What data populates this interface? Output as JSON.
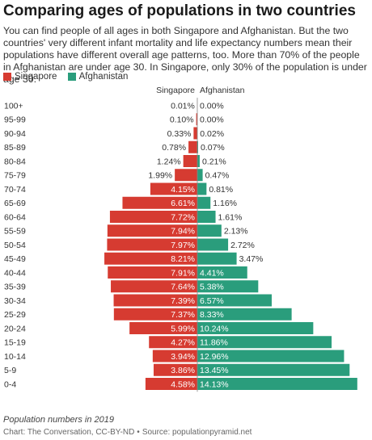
{
  "title": "Comparing ages of populations in two countries",
  "subtitle": "You can find people of all ages in both Singapore and Afghanistan. But the two countries' very different infant mortality and life expectancy numbers mean their populations have different overall age patterns, too. More than 70% of the people in Afghanistan are under age 30. In Singapore, only 30% of the population is under age 30.",
  "footnote": "Population numbers in 2019",
  "source": {
    "chart_credit": "Chart: The Conversation, CC-BY-ND",
    "separator": "•",
    "source_credit": "Source: populationpyramid.net"
  },
  "chart_data": {
    "type": "bar",
    "orientation": "horizontal",
    "layout": "population-pyramid",
    "categories": [
      "100+",
      "95-99",
      "90-94",
      "85-89",
      "80-84",
      "75-79",
      "70-74",
      "65-69",
      "60-64",
      "55-59",
      "50-54",
      "45-49",
      "40-44",
      "35-39",
      "30-34",
      "25-29",
      "20-24",
      "15-19",
      "10-14",
      "5-9",
      "0-4"
    ],
    "series": [
      {
        "name": "Singapore",
        "color": "#d63b31",
        "direction": "left",
        "values": [
          0.01,
          0.1,
          0.33,
          0.78,
          1.24,
          1.99,
          4.15,
          6.61,
          7.72,
          7.94,
          7.97,
          8.21,
          7.91,
          7.64,
          7.39,
          7.37,
          5.99,
          4.27,
          3.94,
          3.86,
          4.58
        ],
        "labels": [
          "0.01%",
          "0.10%",
          "0.33%",
          "0.78%",
          "1.24%",
          "1.99%",
          "4.15%",
          "6.61%",
          "7.72%",
          "7.94%",
          "7.97%",
          "8.21%",
          "7.91%",
          "7.64%",
          "7.39%",
          "7.37%",
          "5.99%",
          "4.27%",
          "3.94%",
          "3.86%",
          "4.58%"
        ]
      },
      {
        "name": "Afghanistan",
        "color": "#2a9d7c",
        "direction": "right",
        "values": [
          0.0,
          0.0,
          0.02,
          0.07,
          0.21,
          0.47,
          0.81,
          1.16,
          1.61,
          2.13,
          2.72,
          3.47,
          4.41,
          5.38,
          6.57,
          8.33,
          10.24,
          11.86,
          12.96,
          13.45,
          14.13
        ],
        "labels": [
          "0.00%",
          "0.00%",
          "0.02%",
          "0.07%",
          "0.21%",
          "0.47%",
          "0.81%",
          "1.16%",
          "1.61%",
          "2.13%",
          "2.72%",
          "3.47%",
          "4.41%",
          "5.38%",
          "6.57%",
          "8.33%",
          "10.24%",
          "11.86%",
          "12.96%",
          "13.45%",
          "14.13%"
        ]
      }
    ],
    "legend": "top-left",
    "grid": false,
    "value_unit": "percent of population"
  }
}
